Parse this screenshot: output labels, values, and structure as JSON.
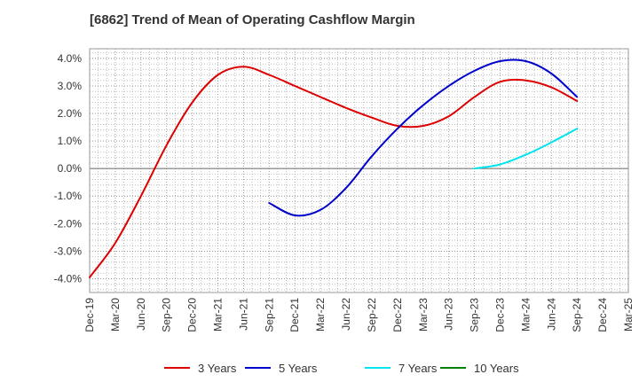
{
  "chart_data": {
    "type": "line",
    "title": "[6862]  Trend of Mean of Operating Cashflow Margin",
    "xlabel": "",
    "ylabel": "",
    "x_ticks": [
      "Dec-19",
      "Mar-20",
      "Jun-20",
      "Sep-20",
      "Dec-20",
      "Mar-21",
      "Jun-21",
      "Sep-21",
      "Dec-21",
      "Mar-22",
      "Jun-22",
      "Sep-22",
      "Dec-22",
      "Mar-23",
      "Jun-23",
      "Sep-23",
      "Dec-23",
      "Mar-24",
      "Jun-24",
      "Sep-24",
      "Dec-24",
      "Mar-25"
    ],
    "y_ticks": [
      "4.0%",
      "3.0%",
      "2.0%",
      "1.0%",
      "0.0%",
      "-1.0%",
      "-2.0%",
      "-3.0%",
      "-4.0%"
    ],
    "y_tick_values": [
      4,
      3,
      2,
      1,
      0,
      -1,
      -2,
      -3,
      -4
    ],
    "ylim": [
      -4.5,
      4.35
    ],
    "grid": true,
    "legend_position": "bottom",
    "series": [
      {
        "name": "3 Years",
        "color": "#dd0000",
        "x": [
          "Dec-19",
          "Mar-20",
          "Jun-20",
          "Sep-20",
          "Dec-20",
          "Mar-21",
          "Jun-21",
          "Sep-21",
          "Dec-21",
          "Mar-22",
          "Jun-22",
          "Sep-22",
          "Dec-22",
          "Mar-23",
          "Jun-23",
          "Sep-23",
          "Dec-23",
          "Mar-24",
          "Jun-24",
          "Sep-24"
        ],
        "values": [
          -3.95,
          -2.7,
          -1.0,
          0.85,
          2.4,
          3.4,
          3.7,
          3.4,
          3.0,
          2.6,
          2.2,
          1.85,
          1.55,
          1.55,
          1.9,
          2.6,
          3.15,
          3.2,
          2.95,
          2.45
        ]
      },
      {
        "name": "5 Years",
        "color": "#0000cc",
        "x": [
          "Sep-21",
          "Dec-21",
          "Mar-22",
          "Jun-22",
          "Sep-22",
          "Dec-22",
          "Mar-23",
          "Jun-23",
          "Sep-23",
          "Dec-23",
          "Mar-24",
          "Jun-24",
          "Sep-24"
        ],
        "values": [
          -1.25,
          -1.7,
          -1.5,
          -0.7,
          0.45,
          1.45,
          2.3,
          3.0,
          3.55,
          3.9,
          3.9,
          3.45,
          2.6
        ]
      },
      {
        "name": "7 Years",
        "color": "#00e5ee",
        "x": [
          "Sep-23",
          "Dec-23",
          "Mar-24",
          "Jun-24",
          "Sep-24"
        ],
        "values": [
          0.0,
          0.15,
          0.5,
          0.95,
          1.45
        ]
      },
      {
        "name": "10 Years",
        "color": "#008000",
        "x": [],
        "values": []
      }
    ]
  }
}
